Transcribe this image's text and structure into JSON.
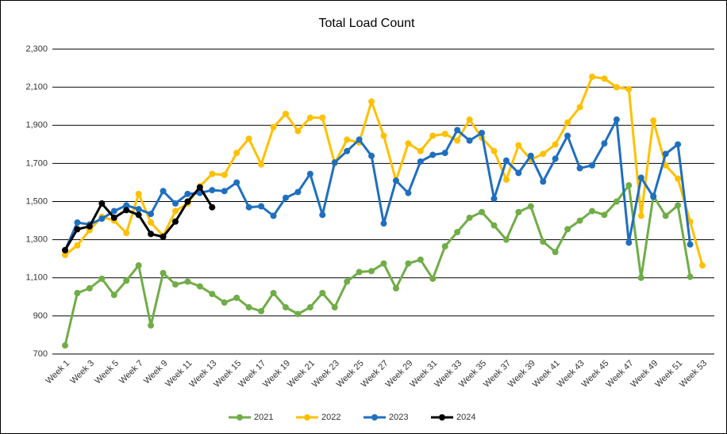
{
  "chart_data": {
    "type": "line",
    "title": "Total Load Count",
    "categories": [
      "Week 1",
      null,
      "Week 3",
      null,
      "Week 5",
      null,
      "Week 7",
      null,
      "Week 9",
      null,
      "Week 11",
      null,
      "Week 13",
      null,
      "Week 15",
      null,
      "Week 17",
      null,
      "Week 19",
      null,
      "Week 21",
      null,
      "Week 23",
      null,
      "Week 25",
      null,
      "Week 27",
      null,
      "Week 29",
      null,
      "Week 31",
      null,
      "Week 33",
      null,
      "Week 35",
      null,
      "Week 37",
      null,
      "Week 39",
      null,
      "Week 41",
      null,
      "Week 43",
      null,
      "Week 45",
      null,
      "Week 47",
      null,
      "Week 49",
      null,
      "Week 51",
      null,
      "Week 53"
    ],
    "series": [
      {
        "name": "2021",
        "color": "#70ad47",
        "values": [
          745,
          1020,
          1045,
          1095,
          1010,
          1085,
          1165,
          850,
          1125,
          1065,
          1080,
          1055,
          1015,
          970,
          995,
          945,
          925,
          1020,
          945,
          910,
          945,
          1020,
          945,
          1080,
          1130,
          1135,
          1175,
          1045,
          1175,
          1195,
          1095,
          1265,
          1340,
          1415,
          1445,
          1375,
          1300,
          1445,
          1475,
          1290,
          1235,
          1355,
          1400,
          1450,
          1430,
          1500,
          1585,
          1100,
          1530,
          1425,
          1480,
          1105,
          null
        ]
      },
      {
        "name": "2022",
        "color": "#ffc000",
        "values": [
          1220,
          1270,
          1350,
          1420,
          1400,
          1335,
          1540,
          1390,
          1320,
          1450,
          1490,
          1580,
          1645,
          1640,
          1755,
          1830,
          1695,
          1890,
          1960,
          1870,
          1940,
          1940,
          1700,
          1825,
          1810,
          2025,
          1845,
          1610,
          1805,
          1765,
          1845,
          1855,
          1820,
          1930,
          1835,
          1765,
          1615,
          1795,
          1720,
          1750,
          1800,
          1915,
          1995,
          2155,
          2145,
          2100,
          2090,
          1425,
          1925,
          1690,
          1620,
          1395,
          1165
        ]
      },
      {
        "name": "2023",
        "color": "#1f6fbf",
        "values": [
          1245,
          1390,
          1380,
          1410,
          1450,
          1480,
          1460,
          1435,
          1555,
          1490,
          1540,
          1545,
          1560,
          1555,
          1600,
          1470,
          1475,
          1425,
          1520,
          1550,
          1645,
          1430,
          1705,
          1765,
          1825,
          1740,
          1385,
          1610,
          1545,
          1710,
          1745,
          1755,
          1875,
          1820,
          1860,
          1515,
          1715,
          1650,
          1740,
          1605,
          1725,
          1845,
          1675,
          1690,
          1805,
          1930,
          1285,
          1625,
          1525,
          1750,
          1800,
          1275,
          null
        ]
      },
      {
        "name": "2024",
        "color": "#000000",
        "values": [
          1245,
          1355,
          1370,
          1490,
          1415,
          1455,
          1430,
          1330,
          1315,
          1395,
          1500,
          1575,
          1470,
          null,
          null,
          null,
          null,
          null,
          null,
          null,
          null,
          null,
          null,
          null,
          null,
          null,
          null,
          null,
          null,
          null,
          null,
          null,
          null,
          null,
          null,
          null,
          null,
          null,
          null,
          null,
          null,
          null,
          null,
          null,
          null,
          null,
          null,
          null,
          null,
          null,
          null,
          null,
          null
        ]
      }
    ],
    "ylim": [
      700,
      2300
    ],
    "yticks": [
      700,
      900,
      {
        "value": 1100,
        "label": "1,100"
      },
      {
        "value": 1300,
        "label": "1,300"
      },
      {
        "value": 1500,
        "label": "1,500"
      },
      {
        "value": 1700,
        "label": "1,700"
      },
      {
        "value": 1900,
        "label": "1,900"
      },
      {
        "value": 2100,
        "label": "2,100"
      },
      {
        "value": 2300,
        "label": "2,300"
      }
    ],
    "grid": true,
    "legend": "bottom"
  }
}
